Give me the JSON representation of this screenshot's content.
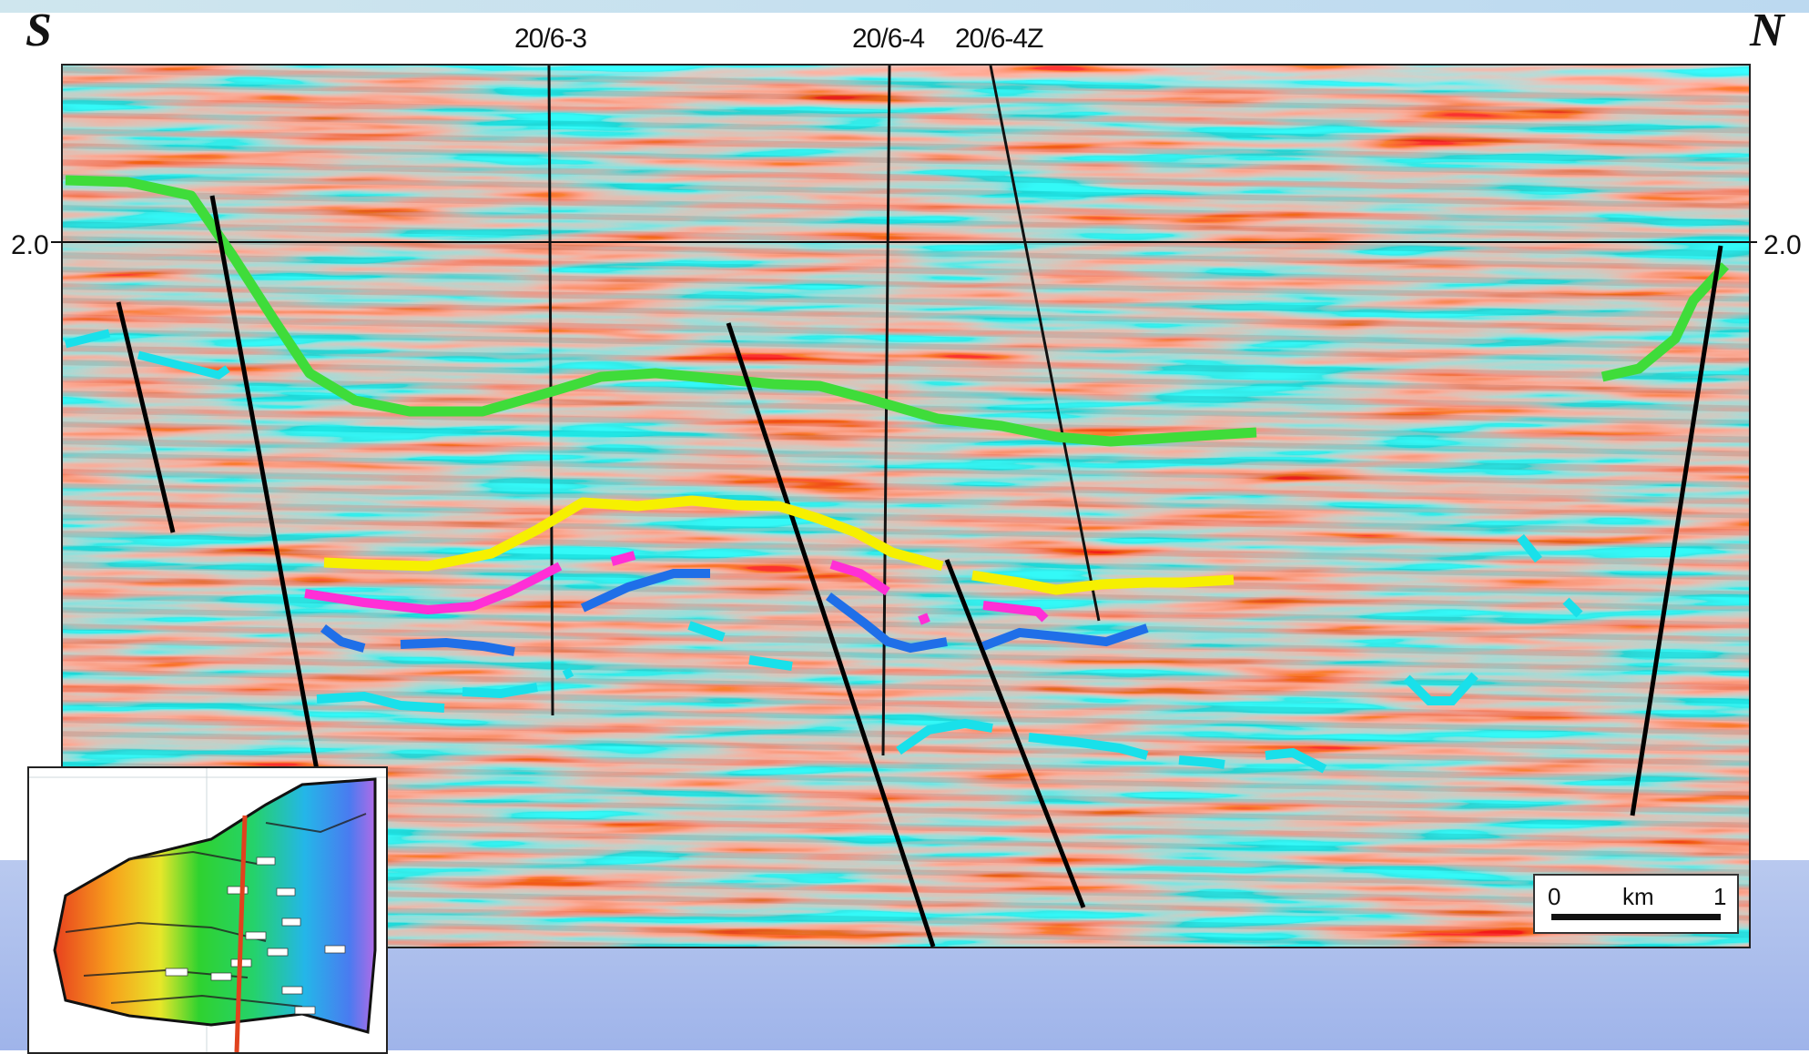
{
  "section": {
    "south_label": "S",
    "north_label": "N",
    "time_left": "2.0",
    "time_right": "2.0",
    "wells": [
      "20/6-3",
      "20/6-4",
      "20/6-4Z"
    ]
  },
  "scale_bar": {
    "start": "0",
    "unit": "km",
    "end": "1"
  },
  "colors": {
    "green_horizon": "#3fdc3a",
    "yellow_horizon": "#f6f000",
    "magenta_horizon": "#ff2fd6",
    "blue_horizon": "#1f6fe8",
    "cyan_horizon": "#19e0ea",
    "faults": "#000000",
    "seismic_red": "#b0221b",
    "background_band": "#a9bcec"
  },
  "icons": [
    "seismic-section-image",
    "location-map-inset"
  ]
}
